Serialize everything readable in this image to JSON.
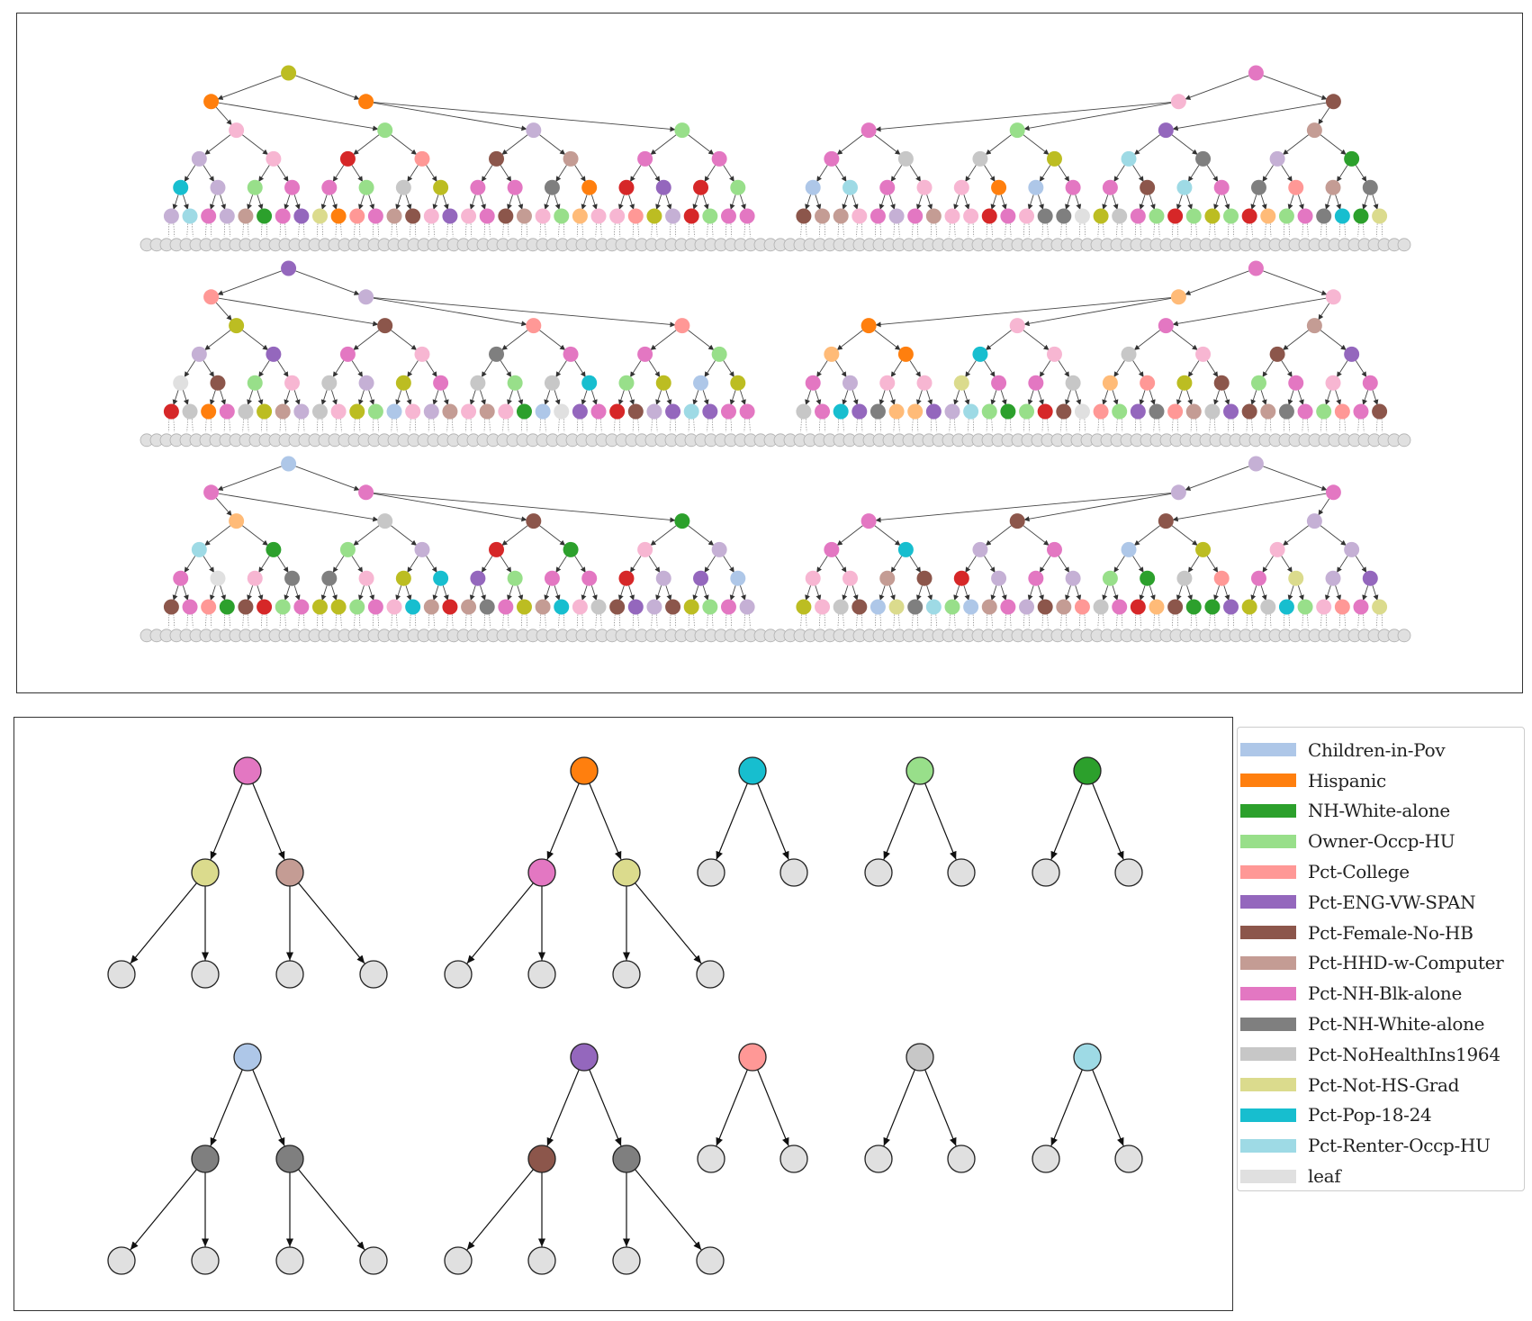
{
  "colors": {
    "Children-in-Pov": "#aec7e8",
    "Hispanic": "#ff7f0e",
    "NH-White-alone": "#2ca02c",
    "Owner-Occp-HU": "#98df8a",
    "Pct-College": "#ff9896",
    "Pct-ENG-VW-SPAN": "#9467bd",
    "Pct-Female-No-HB": "#8c564b",
    "Pct-HHD-w-Computer": "#c49c94",
    "Pct-NH-Blk-alone": "#e377c2",
    "Pct-NH-White-alone": "#7f7f7f",
    "Pct-NoHealthIns1964": "#c7c7c7",
    "Pct-Not-HS-Grad": "#dbdb8d",
    "Pct-Pop-18-24": "#17becf",
    "Pct-Renter-Occp-HU": "#9edae5",
    "leaf": "#e0e0e0",
    "olive": "#bcbd22",
    "pink": "#f7b6d2",
    "red": "#d62728",
    "lavender": "#c5b0d5",
    "peach": "#ffbb78"
  },
  "legend": {
    "items": [
      {
        "label": "Children-in-Pov",
        "color": "#aec7e8"
      },
      {
        "label": "Hispanic",
        "color": "#ff7f0e"
      },
      {
        "label": "NH-White-alone",
        "color": "#2ca02c"
      },
      {
        "label": "Owner-Occp-HU",
        "color": "#98df8a"
      },
      {
        "label": "Pct-College",
        "color": "#ff9896"
      },
      {
        "label": "Pct-ENG-VW-SPAN",
        "color": "#9467bd"
      },
      {
        "label": "Pct-Female-No-HB",
        "color": "#8c564b"
      },
      {
        "label": "Pct-HHD-w-Computer",
        "color": "#c49c94"
      },
      {
        "label": "Pct-NH-Blk-alone",
        "color": "#e377c2"
      },
      {
        "label": "Pct-NH-White-alone",
        "color": "#7f7f7f"
      },
      {
        "label": "Pct-NoHealthIns1964",
        "color": "#c7c7c7"
      },
      {
        "label": "Pct-Not-HS-Grad",
        "color": "#dbdb8d"
      },
      {
        "label": "Pct-Pop-18-24",
        "color": "#17becf"
      },
      {
        "label": "Pct-Renter-Occp-HU",
        "color": "#9edae5"
      },
      {
        "label": "leaf",
        "color": "#e0e0e0"
      }
    ]
  },
  "forest": {
    "trees": [
      {
        "roots": [
          "olive",
          "Pct-NH-Blk-alone"
        ],
        "level1": [
          "Hispanic",
          "Hispanic",
          "pink",
          "Pct-Female-No-HB"
        ],
        "level2": [
          "pink",
          "Owner-Occp-HU",
          "lavender",
          "Owner-Occp-HU",
          "Pct-NH-Blk-alone",
          "Owner-Occp-HU",
          "Pct-ENG-VW-SPAN",
          "Pct-HHD-w-Computer"
        ],
        "level3": [
          "lavender",
          "pink",
          "red",
          "Pct-College",
          "Pct-Female-No-HB",
          "Pct-HHD-w-Computer",
          "Pct-NH-Blk-alone",
          "Pct-NH-Blk-alone",
          "Pct-NH-Blk-alone",
          "Pct-NoHealthIns1964",
          "Pct-NoHealthIns1964",
          "olive",
          "Pct-Renter-Occp-HU",
          "Pct-NH-White-alone",
          "lavender",
          "NH-White-alone"
        ],
        "level4": [
          "Pct-Pop-18-24",
          "lavender",
          "Owner-Occp-HU",
          "Pct-NH-Blk-alone",
          "Pct-NH-Blk-alone",
          "Owner-Occp-HU",
          "Pct-NoHealthIns1964",
          "olive",
          "Pct-NH-Blk-alone",
          "Pct-NH-Blk-alone",
          "Pct-NH-White-alone",
          "Hispanic",
          "red",
          "Pct-ENG-VW-SPAN",
          "red",
          "Owner-Occp-HU",
          "Children-in-Pov",
          "Pct-Renter-Occp-HU",
          "Pct-NH-Blk-alone",
          "pink",
          "pink",
          "Hispanic",
          "Children-in-Pov",
          "Pct-NH-Blk-alone",
          "Pct-NH-Blk-alone",
          "Pct-Female-No-HB",
          "Pct-Renter-Occp-HU",
          "Pct-NH-Blk-alone",
          "Pct-NH-White-alone",
          "Pct-College",
          "Pct-HHD-w-Computer",
          "Pct-NH-White-alone"
        ],
        "level5": [
          "lavender",
          "Pct-Renter-Occp-HU",
          "Pct-NH-Blk-alone",
          "lavender",
          "Pct-HHD-w-Computer",
          "NH-White-alone",
          "Pct-NH-Blk-alone",
          "Pct-ENG-VW-SPAN",
          "Pct-Not-HS-Grad",
          "Hispanic",
          "Pct-College",
          "Pct-NH-Blk-alone",
          "Pct-HHD-w-Computer",
          "Pct-Female-No-HB",
          "pink",
          "Pct-ENG-VW-SPAN",
          "pink",
          "Pct-NH-Blk-alone",
          "Pct-Female-No-HB",
          "Pct-HHD-w-Computer",
          "pink",
          "Owner-Occp-HU",
          "peach",
          "pink",
          "pink",
          "Pct-College",
          "olive",
          "lavender",
          "red",
          "Owner-Occp-HU",
          "Pct-NH-Blk-alone",
          "Pct-NH-Blk-alone",
          "Pct-Female-No-HB",
          "Pct-HHD-w-Computer",
          "Pct-HHD-w-Computer",
          "pink",
          "Pct-NH-Blk-alone",
          "lavender",
          "Pct-NH-Blk-alone",
          "Pct-HHD-w-Computer",
          "pink",
          "pink",
          "red",
          "Pct-NH-Blk-alone",
          "pink",
          "Pct-NH-White-alone",
          "Pct-NH-White-alone",
          "leaf",
          "olive",
          "Pct-NoHealthIns1964",
          "Pct-NH-Blk-alone",
          "Owner-Occp-HU",
          "red",
          "Owner-Occp-HU",
          "olive",
          "Owner-Occp-HU",
          "red",
          "peach",
          "Owner-Occp-HU",
          "Pct-NH-Blk-alone",
          "Pct-NH-White-alone",
          "Pct-Pop-18-24",
          "NH-White-alone",
          "Pct-Not-HS-Grad"
        ]
      },
      {
        "roots": [
          "Pct-ENG-VW-SPAN",
          "Pct-NH-Blk-alone"
        ],
        "level1": [
          "Pct-College",
          "lavender",
          "peach",
          "pink"
        ],
        "level2": [
          "olive",
          "Pct-Female-No-HB",
          "Pct-College",
          "Pct-College",
          "Hispanic",
          "pink",
          "Pct-NH-Blk-alone",
          "Pct-HHD-w-Computer"
        ],
        "level3": [
          "lavender",
          "Pct-ENG-VW-SPAN",
          "Pct-NH-Blk-alone",
          "pink",
          "Pct-NH-White-alone",
          "Pct-NH-Blk-alone",
          "Pct-NH-Blk-alone",
          "Owner-Occp-HU",
          "peach",
          "Hispanic",
          "Pct-Pop-18-24",
          "pink",
          "Pct-NoHealthIns1964",
          "pink",
          "Pct-Female-No-HB",
          "Pct-ENG-VW-SPAN"
        ],
        "level4": [
          "leaf",
          "Pct-Female-No-HB",
          "Owner-Occp-HU",
          "pink",
          "Pct-NoHealthIns1964",
          "lavender",
          "olive",
          "Pct-NH-Blk-alone",
          "Pct-NoHealthIns1964",
          "Owner-Occp-HU",
          "Pct-NoHealthIns1964",
          "Pct-Pop-18-24",
          "Owner-Occp-HU",
          "olive",
          "Children-in-Pov",
          "olive",
          "Pct-NH-Blk-alone",
          "lavender",
          "pink",
          "pink",
          "Pct-Not-HS-Grad",
          "Pct-NH-Blk-alone",
          "Pct-NH-Blk-alone",
          "Pct-NoHealthIns1964",
          "peach",
          "Pct-College",
          "olive",
          "Pct-Female-No-HB",
          "Owner-Occp-HU",
          "Pct-NH-Blk-alone",
          "pink",
          "Pct-NH-Blk-alone"
        ],
        "level5": [
          "red",
          "Pct-NoHealthIns1964",
          "Hispanic",
          "Pct-NH-Blk-alone",
          "Pct-NoHealthIns1964",
          "olive",
          "Pct-HHD-w-Computer",
          "lavender",
          "Pct-NoHealthIns1964",
          "pink",
          "olive",
          "Owner-Occp-HU",
          "Children-in-Pov",
          "pink",
          "lavender",
          "Pct-HHD-w-Computer",
          "pink",
          "Pct-HHD-w-Computer",
          "pink",
          "NH-White-alone",
          "Children-in-Pov",
          "leaf",
          "Pct-ENG-VW-SPAN",
          "Pct-NH-Blk-alone",
          "red",
          "Pct-Female-No-HB",
          "lavender",
          "Pct-ENG-VW-SPAN",
          "Pct-Renter-Occp-HU",
          "Pct-ENG-VW-SPAN",
          "Pct-NH-Blk-alone",
          "Pct-NH-Blk-alone",
          "Pct-NoHealthIns1964",
          "Pct-NH-Blk-alone",
          "Pct-Pop-18-24",
          "Pct-ENG-VW-SPAN",
          "Pct-NH-White-alone",
          "peach",
          "peach",
          "Pct-ENG-VW-SPAN",
          "lavender",
          "Pct-Renter-Occp-HU",
          "Owner-Occp-HU",
          "NH-White-alone",
          "Owner-Occp-HU",
          "red",
          "Pct-Female-No-HB",
          "leaf",
          "Pct-College",
          "Owner-Occp-HU",
          "Pct-ENG-VW-SPAN",
          "Pct-NH-White-alone",
          "Pct-College",
          "Pct-HHD-w-Computer",
          "Pct-NoHealthIns1964",
          "Pct-ENG-VW-SPAN",
          "Pct-Female-No-HB",
          "Pct-HHD-w-Computer",
          "Pct-NH-White-alone",
          "Pct-NH-Blk-alone",
          "Owner-Occp-HU",
          "Pct-College",
          "Pct-NH-Blk-alone",
          "Pct-Female-No-HB"
        ]
      },
      {
        "roots": [
          "Children-in-Pov",
          "lavender"
        ],
        "level1": [
          "Pct-NH-Blk-alone",
          "Pct-NH-Blk-alone",
          "lavender",
          "Pct-NH-Blk-alone"
        ],
        "level2": [
          "peach",
          "Pct-NoHealthIns1964",
          "Pct-Female-No-HB",
          "NH-White-alone",
          "Pct-NH-Blk-alone",
          "Pct-Female-No-HB",
          "Pct-Female-No-HB",
          "lavender"
        ],
        "level3": [
          "Pct-Renter-Occp-HU",
          "NH-White-alone",
          "Owner-Occp-HU",
          "lavender",
          "red",
          "NH-White-alone",
          "pink",
          "lavender",
          "Pct-NH-Blk-alone",
          "Pct-Pop-18-24",
          "lavender",
          "Pct-NH-Blk-alone",
          "Children-in-Pov",
          "olive",
          "pink",
          "lavender"
        ],
        "level4": [
          "Pct-NH-Blk-alone",
          "leaf",
          "pink",
          "Pct-NH-White-alone",
          "Pct-NH-White-alone",
          "pink",
          "olive",
          "Pct-Pop-18-24",
          "Pct-ENG-VW-SPAN",
          "Owner-Occp-HU",
          "Pct-NH-Blk-alone",
          "Pct-NH-Blk-alone",
          "red",
          "lavender",
          "Pct-ENG-VW-SPAN",
          "Children-in-Pov",
          "pink",
          "pink",
          "Pct-HHD-w-Computer",
          "Pct-Female-No-HB",
          "red",
          "lavender",
          "Pct-NH-Blk-alone",
          "lavender",
          "Owner-Occp-HU",
          "NH-White-alone",
          "Pct-NoHealthIns1964",
          "Pct-College",
          "Pct-NH-Blk-alone",
          "Pct-Not-HS-Grad",
          "lavender",
          "Pct-ENG-VW-SPAN"
        ],
        "level5": [
          "Pct-Female-No-HB",
          "Pct-NH-Blk-alone",
          "Pct-College",
          "NH-White-alone",
          "Pct-Female-No-HB",
          "red",
          "Owner-Occp-HU",
          "Pct-NH-Blk-alone",
          "olive",
          "olive",
          "Owner-Occp-HU",
          "Pct-NH-Blk-alone",
          "pink",
          "Pct-Pop-18-24",
          "Pct-HHD-w-Computer",
          "red",
          "Pct-HHD-w-Computer",
          "Pct-NH-White-alone",
          "Pct-NH-Blk-alone",
          "olive",
          "Pct-HHD-w-Computer",
          "Pct-Pop-18-24",
          "pink",
          "Pct-NoHealthIns1964",
          "Pct-Female-No-HB",
          "Pct-ENG-VW-SPAN",
          "lavender",
          "Pct-Female-No-HB",
          "olive",
          "Owner-Occp-HU",
          "Pct-NH-Blk-alone",
          "lavender",
          "olive",
          "pink",
          "Pct-NoHealthIns1964",
          "Pct-Female-No-HB",
          "Children-in-Pov",
          "Pct-Not-HS-Grad",
          "Pct-NH-White-alone",
          "Pct-Renter-Occp-HU",
          "Owner-Occp-HU",
          "Children-in-Pov",
          "Pct-HHD-w-Computer",
          "Pct-NH-Blk-alone",
          "lavender",
          "Pct-Female-No-HB",
          "Pct-HHD-w-Computer",
          "Pct-College",
          "Pct-NoHealthIns1964",
          "Pct-NH-Blk-alone",
          "red",
          "peach",
          "Pct-Female-No-HB",
          "NH-White-alone",
          "NH-White-alone",
          "Pct-ENG-VW-SPAN",
          "olive",
          "Pct-NoHealthIns1964",
          "Pct-Pop-18-24",
          "Owner-Occp-HU",
          "pink",
          "Pct-College",
          "Pct-NH-Blk-alone",
          "Pct-Not-HS-Grad"
        ]
      }
    ]
  },
  "motifs": [
    {
      "root": "Pct-NH-Blk-alone",
      "children": [
        "Pct-Not-HS-Grad",
        "Pct-HHD-w-Computer"
      ],
      "grandchildren": [
        "leaf",
        "leaf",
        "leaf",
        "leaf"
      ]
    },
    {
      "root": "Hispanic",
      "children": [
        "Pct-NH-Blk-alone",
        "Pct-Not-HS-Grad"
      ],
      "grandchildren": [
        "leaf",
        "leaf",
        "leaf",
        "leaf"
      ]
    },
    {
      "root": "Pct-Pop-18-24",
      "children": [
        "leaf",
        "leaf"
      ],
      "grandchildren": []
    },
    {
      "root": "Owner-Occp-HU",
      "children": [
        "leaf",
        "leaf"
      ],
      "grandchildren": []
    },
    {
      "root": "NH-White-alone",
      "children": [
        "leaf",
        "leaf"
      ],
      "grandchildren": []
    },
    {
      "root": "Children-in-Pov",
      "children": [
        "Pct-NH-White-alone",
        "Pct-NH-White-alone"
      ],
      "grandchildren": [
        "leaf",
        "leaf",
        "leaf",
        "leaf"
      ]
    },
    {
      "root": "Pct-ENG-VW-SPAN",
      "children": [
        "Pct-Female-No-HB",
        "Pct-NH-White-alone"
      ],
      "grandchildren": [
        "leaf",
        "leaf",
        "leaf",
        "leaf"
      ]
    },
    {
      "root": "Pct-College",
      "children": [
        "leaf",
        "leaf"
      ],
      "grandchildren": []
    },
    {
      "root": "Pct-NoHealthIns1964",
      "children": [
        "leaf",
        "leaf"
      ],
      "grandchildren": []
    },
    {
      "root": "Pct-Renter-Occp-HU",
      "children": [
        "leaf",
        "leaf"
      ],
      "grandchildren": []
    }
  ]
}
